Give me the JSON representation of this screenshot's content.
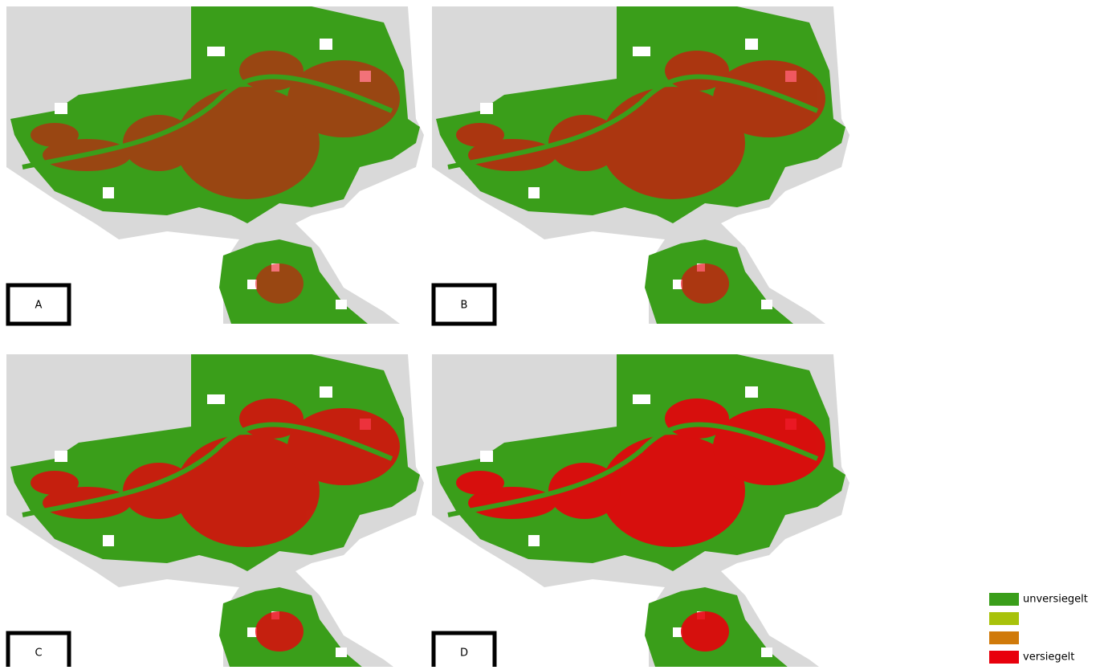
{
  "panels": [
    {
      "label": "A"
    },
    {
      "label": "B"
    },
    {
      "label": "C"
    },
    {
      "label": "D"
    }
  ],
  "legend": {
    "items": [
      {
        "label": "unversiegelt",
        "color": "#3a9e1a"
      },
      {
        "color": "#a8c20a"
      },
      {
        "color": "#d07a0a"
      },
      {
        "label": "versiegelt",
        "color": "#e8000c"
      }
    ]
  }
}
